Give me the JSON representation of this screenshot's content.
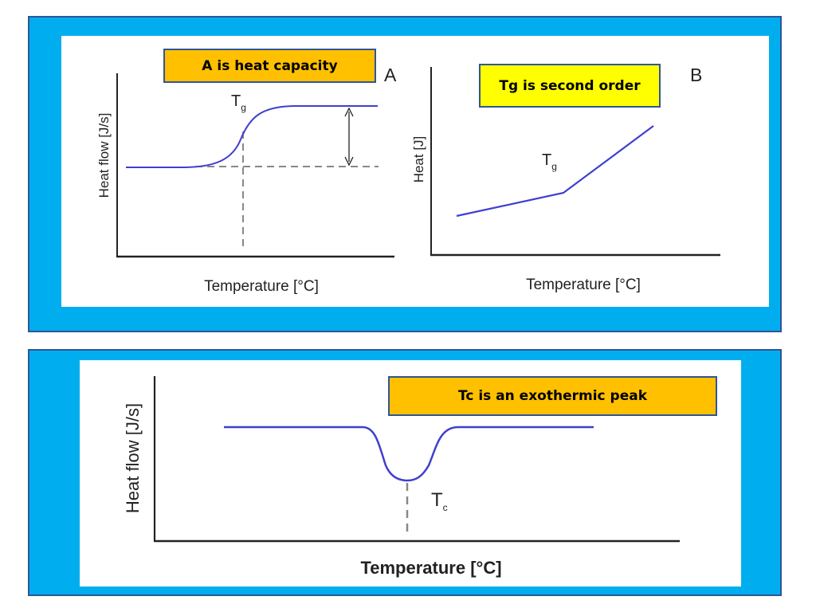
{
  "colors": {
    "panel_blue": "#00aeef",
    "panel_border": "#2f5597",
    "callout_orange": "#ffc000",
    "callout_yellow": "#ffff00",
    "curve_blue": "#3f3fd0"
  },
  "callouts": {
    "a": "A is heat capacity",
    "b": "Tg  is second order",
    "c": "Tc  is an exothermic peak"
  },
  "plot_a": {
    "panel_letter": "A",
    "ylabel": "Heat flow [J/s]",
    "xlabel": "Temperature [°C]",
    "tg_label": "T",
    "tg_subscript": "g"
  },
  "plot_b": {
    "panel_letter": "B",
    "ylabel": "Heat [J]",
    "xlabel": "Temperature [°C]",
    "tg_label": "T",
    "tg_subscript": "g"
  },
  "plot_c": {
    "ylabel": "Heat flow [J/s]",
    "xlabel": "Temperature [°C]",
    "tc_label": "T",
    "tc_subscript": "c"
  }
}
